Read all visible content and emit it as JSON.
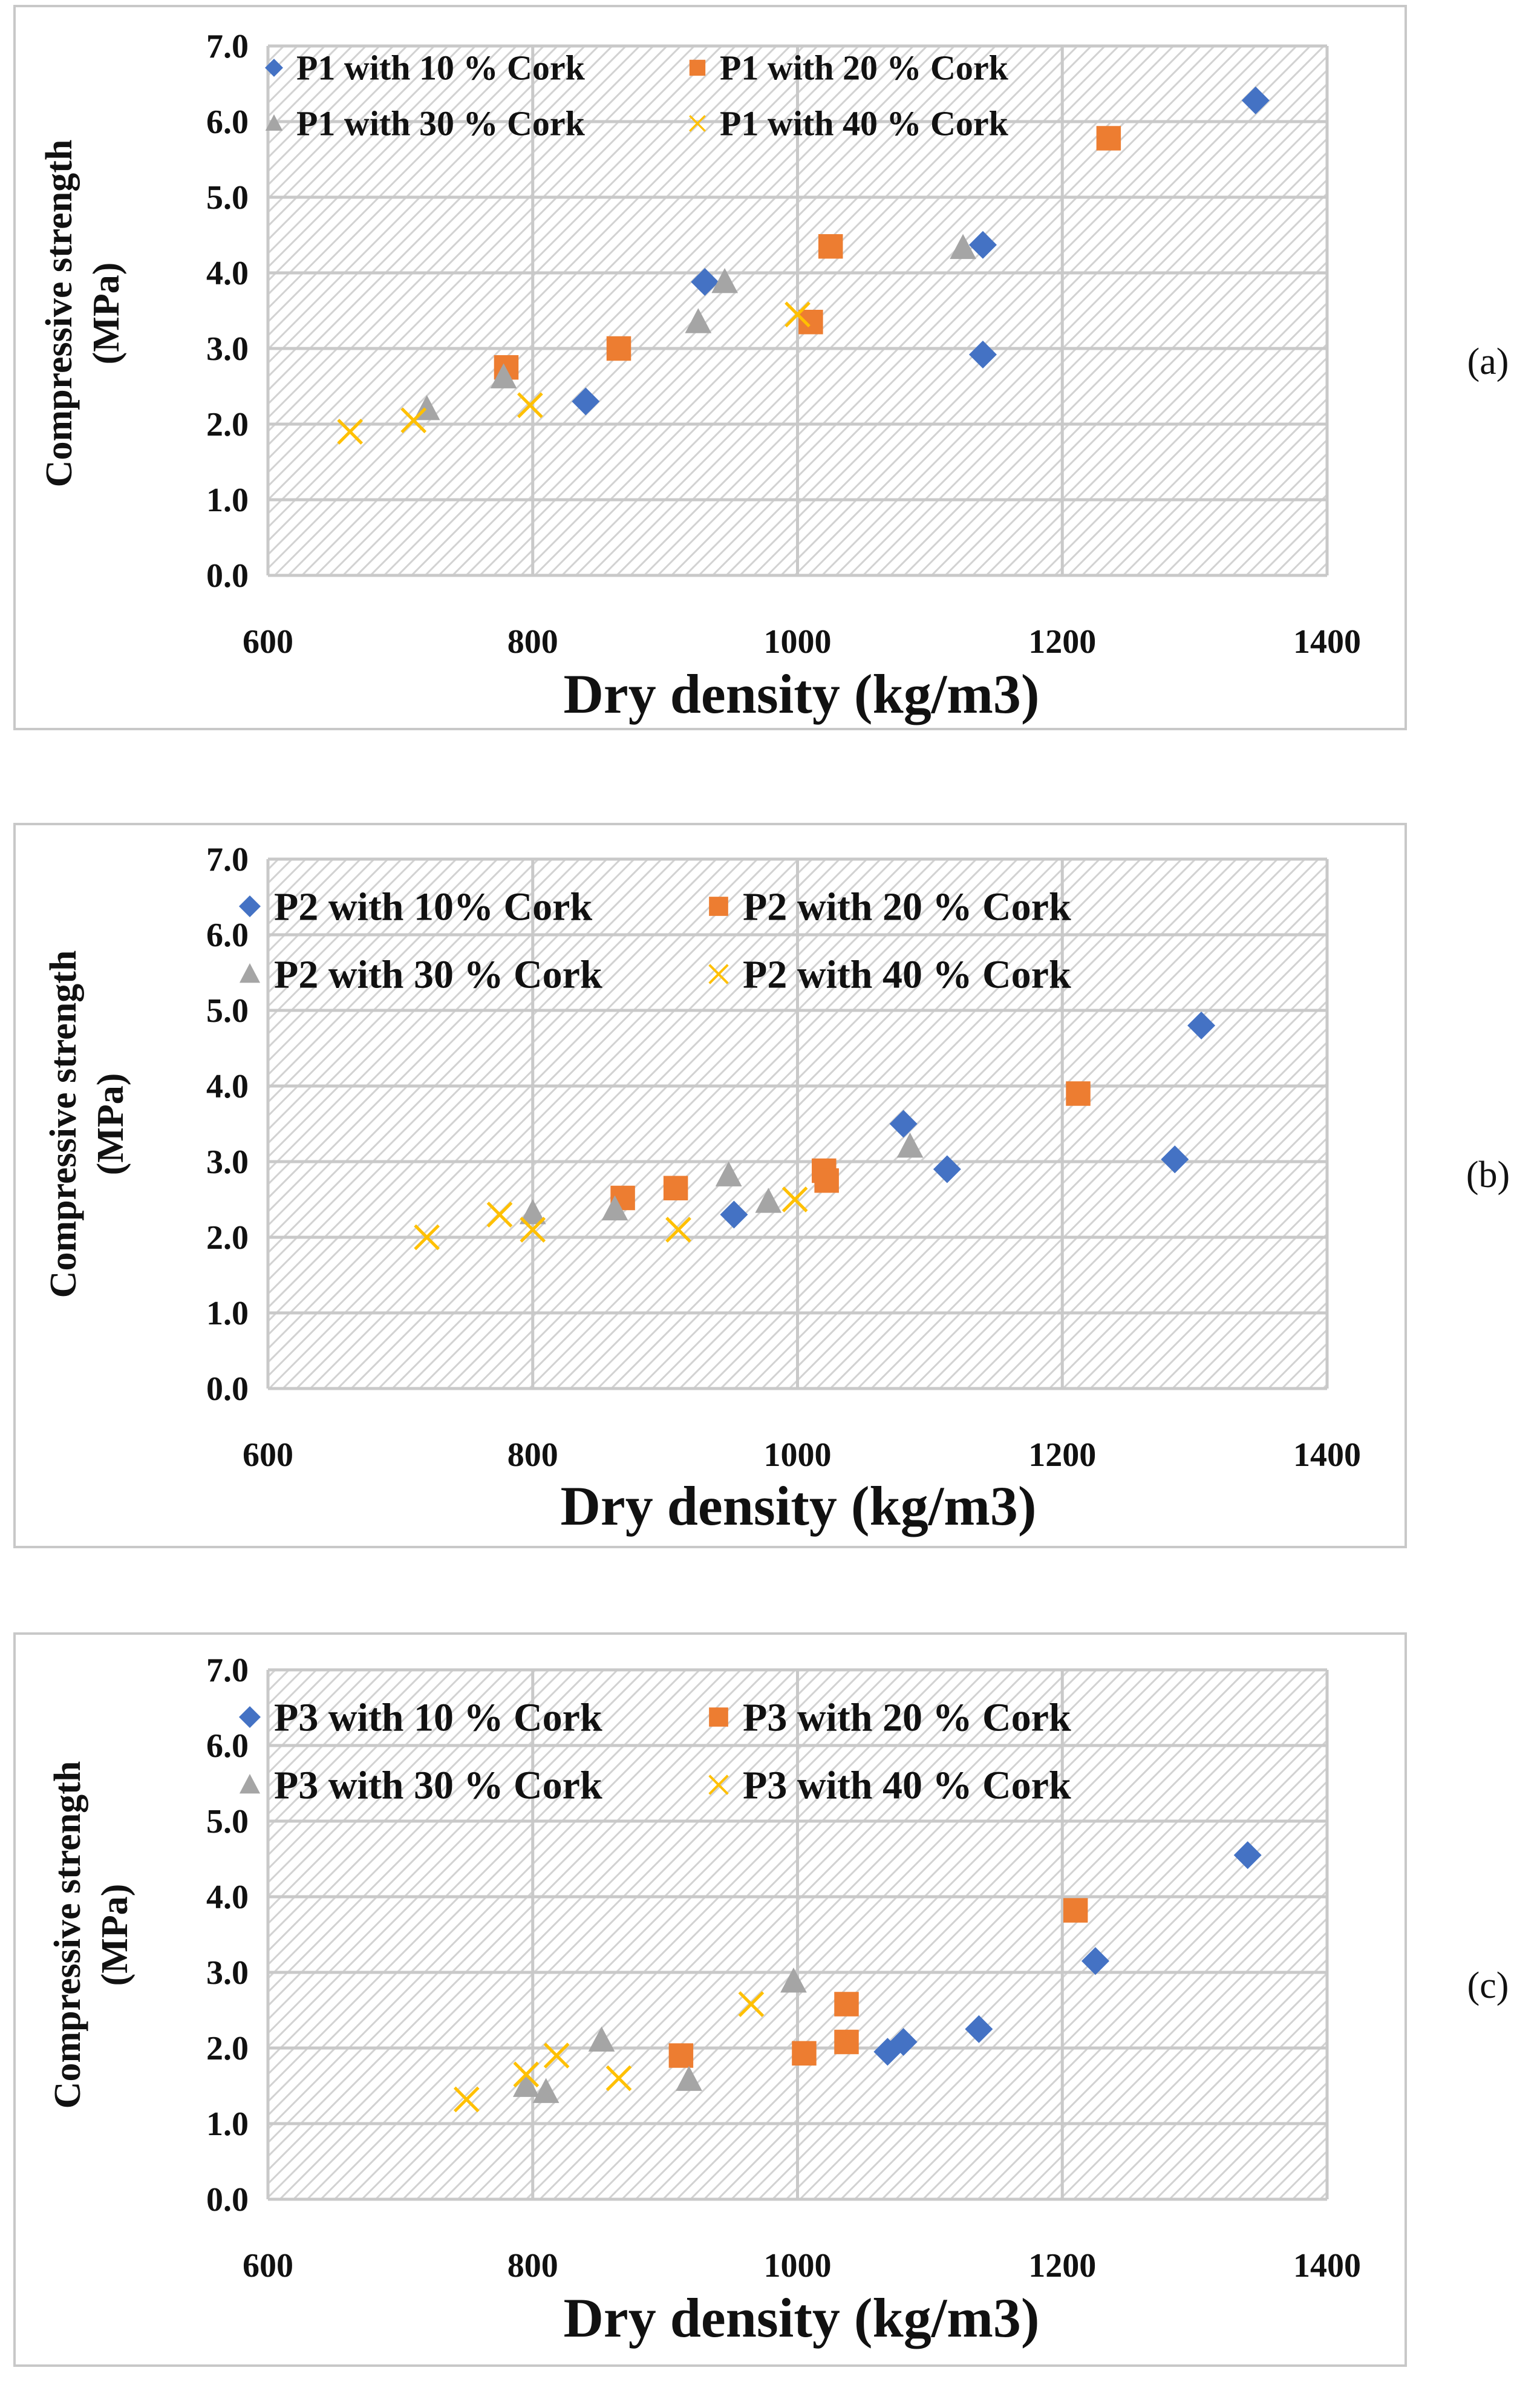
{
  "colors": {
    "s10": "#4472C4",
    "s20": "#ED7D31",
    "s30": "#A5A5A5",
    "s40": "#FFC000"
  },
  "chart_data": [
    {
      "type": "scatter",
      "panel_label": "(a)",
      "xlabel": "Dry density (kg/m3)",
      "ylabel_line1": "Compressive strength",
      "ylabel_line2": "(MPa)",
      "xlim": [
        600,
        1400
      ],
      "ylim": [
        0,
        7
      ],
      "x_ticks": [
        "600",
        "800",
        "1000",
        "1200",
        "1400"
      ],
      "y_ticks": [
        "0.0",
        "1.0",
        "2.0",
        "3.0",
        "4.0",
        "5.0",
        "6.0",
        "7.0"
      ],
      "legend_size": "small",
      "series": [
        {
          "name": "P1 with 10 % Cork",
          "marker": "diamond",
          "color_key": "s10",
          "points": [
            [
              840,
              2.3
            ],
            [
              930,
              3.88
            ],
            [
              1140,
              4.37
            ],
            [
              1140,
              2.92
            ],
            [
              1346,
              6.28
            ]
          ]
        },
        {
          "name": "P1 with 20 % Cork",
          "marker": "square",
          "color_key": "s20",
          "points": [
            [
              780,
              2.75
            ],
            [
              865,
              3.0
            ],
            [
              1010,
              3.35
            ],
            [
              1025,
              4.35
            ],
            [
              1235,
              5.78
            ]
          ]
        },
        {
          "name": "P1 with 30 % Cork",
          "marker": "triangle",
          "color_key": "s30",
          "points": [
            [
              720,
              2.2
            ],
            [
              778,
              2.62
            ],
            [
              925,
              3.35
            ],
            [
              945,
              3.88
            ],
            [
              1125,
              4.33
            ]
          ]
        },
        {
          "name": "P1 with 40 % Cork",
          "marker": "x",
          "color_key": "s40",
          "points": [
            [
              662,
              1.9
            ],
            [
              710,
              2.05
            ],
            [
              798,
              2.25
            ],
            [
              1000,
              3.45
            ]
          ]
        }
      ]
    },
    {
      "type": "scatter",
      "panel_label": "(b)",
      "xlabel": "Dry density (kg/m3)",
      "ylabel_line1": "Compressive strength",
      "ylabel_line2": "(MPa)",
      "xlim": [
        600,
        1400
      ],
      "ylim": [
        0,
        7
      ],
      "x_ticks": [
        "600",
        "800",
        "1000",
        "1200",
        "1400"
      ],
      "y_ticks": [
        "0.0",
        "1.0",
        "2.0",
        "3.0",
        "4.0",
        "5.0",
        "6.0",
        "7.0"
      ],
      "legend_size": "large",
      "series": [
        {
          "name": "P2 with 10% Cork",
          "marker": "diamond",
          "color_key": "s10",
          "points": [
            [
              952,
              2.3
            ],
            [
              1080,
              3.5
            ],
            [
              1113,
              2.9
            ],
            [
              1285,
              3.03
            ],
            [
              1305,
              4.8
            ]
          ]
        },
        {
          "name": "P2 with 20 % Cork",
          "marker": "square",
          "color_key": "s20",
          "points": [
            [
              868,
              2.52
            ],
            [
              908,
              2.65
            ],
            [
              1020,
              2.88
            ],
            [
              1022,
              2.75
            ],
            [
              1212,
              3.9
            ]
          ]
        },
        {
          "name": "P2 with 30 % Cork",
          "marker": "triangle",
          "color_key": "s30",
          "points": [
            [
              800,
              2.32
            ],
            [
              862,
              2.37
            ],
            [
              948,
              2.82
            ],
            [
              978,
              2.47
            ],
            [
              1085,
              3.2
            ]
          ]
        },
        {
          "name": "P2 with 40 % Cork",
          "marker": "x",
          "color_key": "s40",
          "points": [
            [
              720,
              2.0
            ],
            [
              775,
              2.3
            ],
            [
              800,
              2.1
            ],
            [
              910,
              2.1
            ],
            [
              998,
              2.5
            ]
          ]
        }
      ]
    },
    {
      "type": "scatter",
      "panel_label": "(c)",
      "xlabel": "Dry density (kg/m3)",
      "ylabel_line1": "Compressive strength",
      "ylabel_line2": "(MPa)",
      "xlim": [
        600,
        1400
      ],
      "ylim": [
        0,
        7
      ],
      "x_ticks": [
        "600",
        "800",
        "1000",
        "1200",
        "1400"
      ],
      "y_ticks": [
        "0.0",
        "1.0",
        "2.0",
        "3.0",
        "4.0",
        "5.0",
        "6.0",
        "7.0"
      ],
      "legend_size": "large",
      "series": [
        {
          "name": "P3 with 10 % Cork",
          "marker": "diamond",
          "color_key": "s10",
          "points": [
            [
              1068,
              1.95
            ],
            [
              1080,
              2.08
            ],
            [
              1137,
              2.25
            ],
            [
              1225,
              3.15
            ],
            [
              1340,
              4.55
            ]
          ]
        },
        {
          "name": "P3 with 20 % Cork",
          "marker": "square",
          "color_key": "s20",
          "points": [
            [
              912,
              1.9
            ],
            [
              1005,
              1.93
            ],
            [
              1037,
              2.08
            ],
            [
              1037,
              2.58
            ],
            [
              1210,
              3.82
            ]
          ]
        },
        {
          "name": "P3 with 30 % Cork",
          "marker": "triangle",
          "color_key": "s30",
          "points": [
            [
              795,
              1.5
            ],
            [
              810,
              1.42
            ],
            [
              852,
              2.1
            ],
            [
              918,
              1.58
            ],
            [
              997,
              2.88
            ]
          ]
        },
        {
          "name": "P3 with 40 % Cork",
          "marker": "x",
          "color_key": "s40",
          "points": [
            [
              750,
              1.32
            ],
            [
              795,
              1.65
            ],
            [
              818,
              1.9
            ],
            [
              865,
              1.6
            ],
            [
              965,
              2.58
            ]
          ]
        }
      ]
    }
  ]
}
